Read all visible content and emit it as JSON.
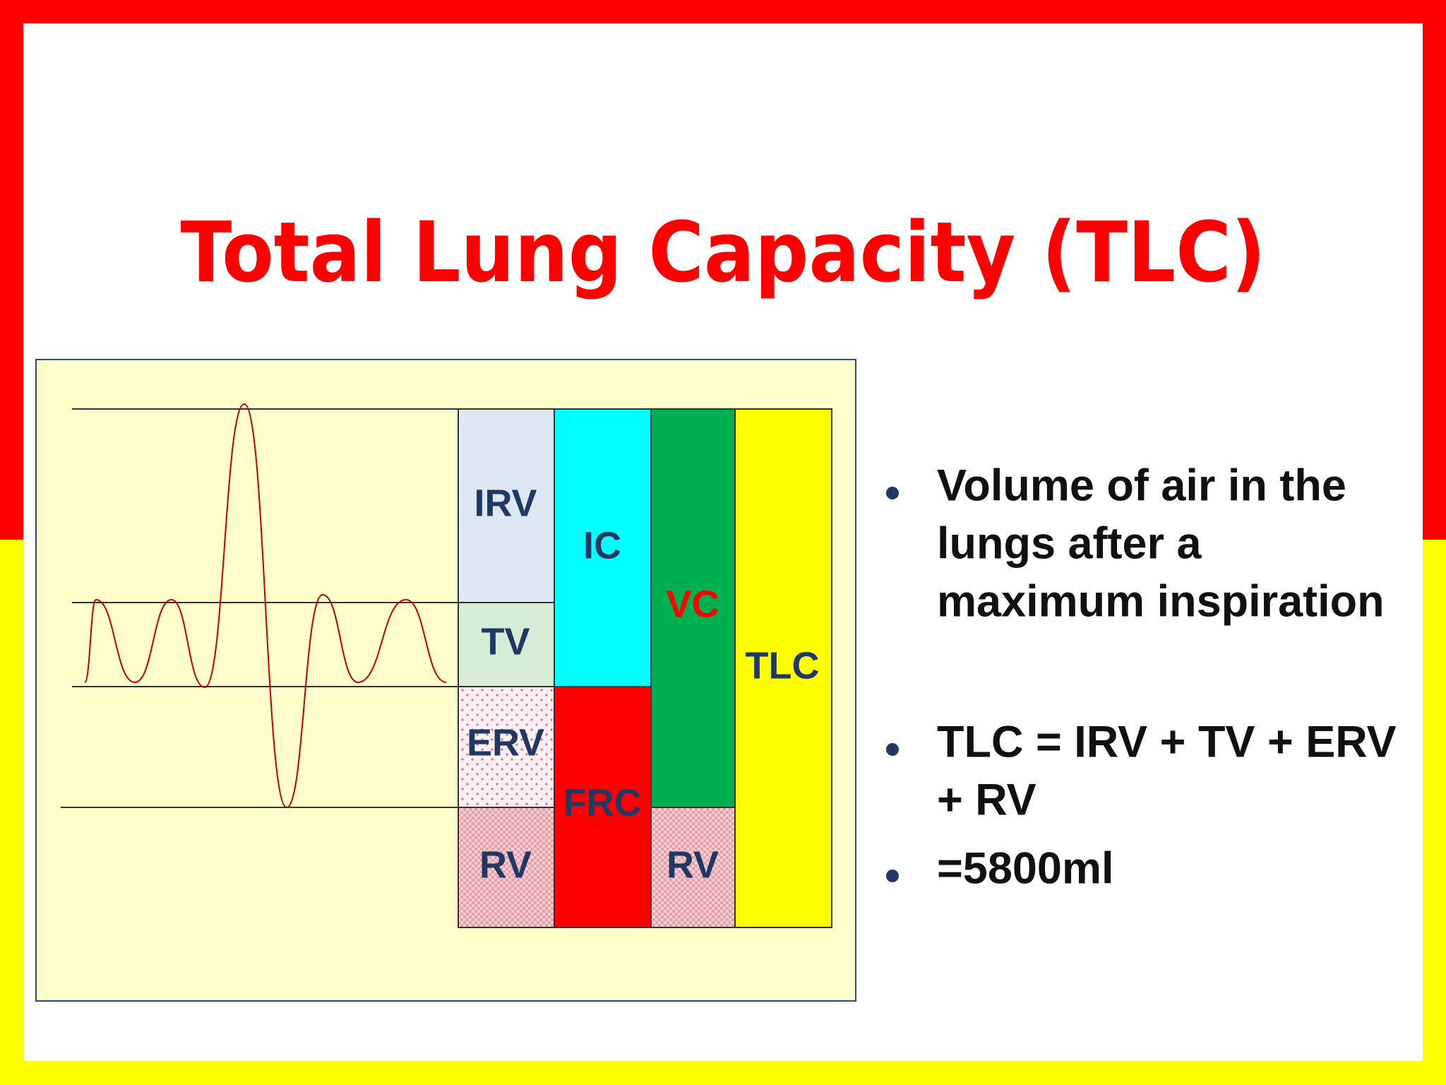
{
  "title": "Total Lung Capacity (TLC)",
  "diagram": {
    "irv": "IRV",
    "tv": "TV",
    "erv": "ERV",
    "rv_left": "RV",
    "ic": "IC",
    "frc": "FRC",
    "vc": "VC",
    "rv_right": "RV",
    "tlc": "TLC"
  },
  "bullets": [
    {
      "lines": [
        "Volume of air in the",
        "lungs after a",
        "maximum inspiration"
      ]
    },
    {
      "lines": [
        "TLC = IRV + TV + ERV",
        "+ RV"
      ]
    },
    {
      "lines": [
        "=5800ml"
      ]
    }
  ]
}
